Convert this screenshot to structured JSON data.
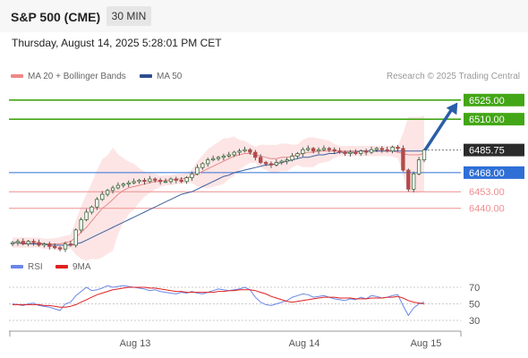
{
  "header": {
    "title": "S&P 500 (CME)",
    "timeframe": "30 MIN",
    "datetime": "Thursday, August 14, 2025 5:28:01 PM CET"
  },
  "legend": {
    "ma20_label": "MA 20 + Bollinger Bands",
    "ma50_label": "MA 50",
    "credit": "Research © 2025 Trading Central"
  },
  "rsi_legend": {
    "rsi_label": "RSI",
    "ma_label": "9MA"
  },
  "colors": {
    "up": "#3a6b3a",
    "down": "#b24a4a",
    "ma20": "#e58a8a",
    "ma50": "#3d5f9e",
    "band": "#fde2e2",
    "resistance": "#43a616",
    "pivot": "#2f6fd6",
    "support": "#ee8e8e",
    "arrow": "#2a5ea8",
    "rsi": "#6b86e8",
    "rsi_ma": "#e02020"
  },
  "chart_data": [
    {
      "type": "candlestick",
      "title": "S&P 500 (CME)",
      "interval": "30 MIN",
      "x_tick_labels": [
        "Aug 13",
        "Aug 14",
        "Aug 15"
      ],
      "price_axis": {
        "ylim": [
          6418,
          6534
        ]
      },
      "levels": [
        {
          "value": 6525.0,
          "label": "6525.00",
          "kind": "resistance"
        },
        {
          "value": 6510.0,
          "label": "6510.00",
          "kind": "resistance"
        },
        {
          "value": 6485.75,
          "label": "6485.75",
          "kind": "last"
        },
        {
          "value": 6468.0,
          "label": "6468.00",
          "kind": "pivot"
        },
        {
          "value": 6453.0,
          "label": "6453.00",
          "kind": "support"
        },
        {
          "value": 6440.0,
          "label": "6440.00",
          "kind": "support"
        }
      ],
      "close_series": [
        6413,
        6414,
        6412,
        6414,
        6413,
        6411,
        6412,
        6410,
        6409,
        6408,
        6412,
        6411,
        6423,
        6431,
        6437,
        6441,
        6447,
        6451,
        6454,
        6456,
        6458,
        6459,
        6460,
        6461,
        6462,
        6461,
        6463,
        6462,
        6461,
        6461,
        6463,
        6462,
        6461,
        6464,
        6467,
        6472,
        6475,
        6478,
        6479,
        6480,
        6481,
        6482,
        6484,
        6485,
        6486,
        6484,
        6480,
        6476,
        6475,
        6474,
        6476,
        6477,
        6478,
        6481,
        6483,
        6486,
        6487,
        6485,
        6486,
        6487,
        6486,
        6485,
        6484,
        6483,
        6484,
        6483,
        6485,
        6484,
        6486,
        6487,
        6486,
        6485,
        6488,
        6487,
        6470,
        6455,
        6467,
        6478,
        6485.75
      ],
      "ma20_series": [
        6413,
        6413,
        6413,
        6413,
        6413,
        6413,
        6412,
        6412,
        6412,
        6412,
        6413,
        6414,
        6417,
        6421,
        6425,
        6430,
        6435,
        6440,
        6443,
        6447,
        6451,
        6454,
        6456,
        6457,
        6458,
        6459,
        6460,
        6461,
        6461,
        6462,
        6462,
        6463,
        6463,
        6464,
        6465,
        6467,
        6469,
        6471,
        6473,
        6475,
        6477,
        6479,
        6481,
        6482,
        6483,
        6483,
        6482,
        6481,
        6480,
        6479,
        6479,
        6480,
        6480,
        6481,
        6482,
        6483,
        6484,
        6484,
        6485,
        6485,
        6485,
        6485,
        6485,
        6485,
        6485,
        6485,
        6485,
        6485,
        6485,
        6485,
        6485,
        6485,
        6485,
        6484,
        6483,
        6482,
        6482,
        6482,
        6483
      ],
      "ma50_series": [
        6413,
        6413,
        6412,
        6412,
        6412,
        6412,
        6412,
        6411,
        6411,
        6411,
        6411,
        6411,
        6412,
        6413,
        6415,
        6417,
        6419,
        6421,
        6423,
        6425,
        6427,
        6429,
        6431,
        6433,
        6435,
        6437,
        6439,
        6441,
        6443,
        6445,
        6447,
        6449,
        6451,
        6452,
        6453,
        6455,
        6457,
        6459,
        6461,
        6463,
        6465,
        6466,
        6468,
        6469,
        6470,
        6471,
        6472,
        6473,
        6474,
        6474,
        6475,
        6476,
        6477,
        6478,
        6479,
        6480,
        6480,
        6481,
        6482,
        6482,
        6483,
        6483,
        6484,
        6484,
        6484,
        6484,
        6485,
        6485,
        6485,
        6485,
        6485,
        6485,
        6485,
        6485,
        6485,
        6485,
        6485,
        6485,
        6485
      ],
      "projection": {
        "from": 6485.75,
        "to": 6525.0
      }
    },
    {
      "type": "line",
      "title": "RSI",
      "ylim": [
        30,
        70
      ],
      "y_tick_labels": [
        "70",
        "50",
        "30"
      ],
      "series": [
        {
          "name": "RSI",
          "values": [
            50,
            49,
            48,
            50,
            51,
            48,
            47,
            46,
            44,
            42,
            50,
            52,
            60,
            65,
            70,
            66,
            67,
            69,
            72,
            70,
            71,
            72,
            71,
            70,
            69,
            68,
            66,
            67,
            65,
            64,
            63,
            62,
            64,
            63,
            65,
            63,
            62,
            64,
            66,
            68,
            67,
            66,
            67,
            68,
            70,
            67,
            58,
            52,
            49,
            48,
            50,
            52,
            54,
            58,
            60,
            62,
            61,
            58,
            59,
            60,
            58,
            56,
            55,
            54,
            56,
            55,
            58,
            56,
            60,
            59,
            57,
            58,
            60,
            61,
            48,
            36,
            45,
            50,
            52
          ]
        },
        {
          "name": "9MA",
          "values": [
            49,
            49,
            49,
            49,
            49,
            49,
            48,
            48,
            47,
            46,
            46,
            47,
            49,
            52,
            55,
            58,
            61,
            63,
            65,
            67,
            68,
            69,
            70,
            70,
            70,
            70,
            69,
            69,
            68,
            67,
            66,
            65,
            65,
            64,
            64,
            64,
            64,
            64,
            64,
            65,
            65,
            66,
            66,
            67,
            67,
            67,
            66,
            64,
            62,
            59,
            57,
            55,
            53,
            52,
            53,
            54,
            55,
            56,
            57,
            58,
            58,
            58,
            57,
            57,
            57,
            56,
            56,
            56,
            57,
            57,
            57,
            58,
            58,
            59,
            57,
            54,
            52,
            51,
            50
          ]
        }
      ]
    }
  ]
}
